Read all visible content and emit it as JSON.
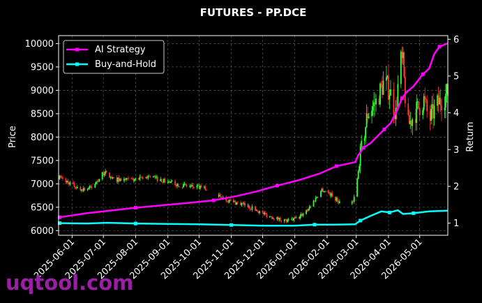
{
  "chart_data": {
    "type": "line",
    "title": "FUTURES - PP.DCE",
    "ylabel": "Price",
    "y2label": "Return",
    "x_ticks": [
      "2025-06-01",
      "2025-07-01",
      "2025-08-01",
      "2025-09-01",
      "2025-10-01",
      "2025-11-01",
      "2025-12-01",
      "2026-01-01",
      "2026-02-01",
      "2026-03-01",
      "2026-04-01",
      "2026-05-01"
    ],
    "x_range": [
      "2025-05-19",
      "2026-05-28"
    ],
    "y_ticks": [
      6000,
      6500,
      7000,
      7500,
      8000,
      8500,
      9000,
      9500,
      10000
    ],
    "ylim": [
      5900,
      10170
    ],
    "y2_ticks": [
      1,
      2,
      3,
      4,
      5,
      6
    ],
    "y2lim": [
      0.67,
      6.1
    ],
    "grid": true,
    "legend_position": "upper left",
    "candles": {
      "up_color": "#33ff33",
      "down_color": "#ff3333",
      "gaps": [
        [
          "2025-10-08",
          "2025-10-20"
        ],
        [
          "2026-02-13",
          "2026-02-25"
        ]
      ],
      "price_path": [
        [
          "2025-05-20",
          7130
        ],
        [
          "2025-05-31",
          7000
        ],
        [
          "2025-06-08",
          6880
        ],
        [
          "2025-06-20",
          6920
        ],
        [
          "2025-07-02",
          7250
        ],
        [
          "2025-07-10",
          7100
        ],
        [
          "2025-07-25",
          7080
        ],
        [
          "2025-08-05",
          7100
        ],
        [
          "2025-08-14",
          7170
        ],
        [
          "2025-08-25",
          7080
        ],
        [
          "2025-09-08",
          7000
        ],
        [
          "2025-09-20",
          6950
        ],
        [
          "2025-10-07",
          6900
        ],
        [
          "2025-10-21",
          6720
        ],
        [
          "2025-11-01",
          6620
        ],
        [
          "2025-11-12",
          6560
        ],
        [
          "2025-11-22",
          6470
        ],
        [
          "2025-12-05",
          6330
        ],
        [
          "2025-12-15",
          6260
        ],
        [
          "2025-12-25",
          6200
        ],
        [
          "2026-01-05",
          6280
        ],
        [
          "2026-01-15",
          6500
        ],
        [
          "2026-01-27",
          6880
        ],
        [
          "2026-02-02",
          6820
        ],
        [
          "2026-02-12",
          6620
        ],
        [
          "2026-02-26",
          6600
        ],
        [
          "2026-03-01",
          6920
        ],
        [
          "2026-03-05",
          7600
        ],
        [
          "2026-03-12",
          8500
        ],
        [
          "2026-03-20",
          8750
        ],
        [
          "2026-03-28",
          9200
        ],
        [
          "2026-04-02",
          9000
        ],
        [
          "2026-04-08",
          8500
        ],
        [
          "2026-04-12",
          9650
        ],
        [
          "2026-04-15",
          9550
        ],
        [
          "2026-04-19",
          8200
        ],
        [
          "2026-04-26",
          8500
        ],
        [
          "2026-05-05",
          8800
        ],
        [
          "2026-05-10",
          8350
        ],
        [
          "2026-05-18",
          8700
        ],
        [
          "2026-05-28",
          8950
        ]
      ]
    },
    "series": [
      {
        "name": "AI Strategy",
        "color": "#ff00ff",
        "axis": "right",
        "points": [
          [
            "2025-05-20",
            1.16
          ],
          [
            "2025-06-15",
            1.27
          ],
          [
            "2025-07-10",
            1.35
          ],
          [
            "2025-08-01",
            1.42
          ],
          [
            "2025-08-25",
            1.48
          ],
          [
            "2025-09-20",
            1.55
          ],
          [
            "2025-10-15",
            1.62
          ],
          [
            "2025-11-05",
            1.73
          ],
          [
            "2025-11-25",
            1.86
          ],
          [
            "2025-12-15",
            2.02
          ],
          [
            "2026-01-05",
            2.17
          ],
          [
            "2026-01-25",
            2.35
          ],
          [
            "2026-02-10",
            2.55
          ],
          [
            "2026-02-28",
            2.66
          ],
          [
            "2026-03-03",
            2.85
          ],
          [
            "2026-03-08",
            3.05
          ],
          [
            "2026-03-15",
            3.18
          ],
          [
            "2026-03-22",
            3.38
          ],
          [
            "2026-03-28",
            3.55
          ],
          [
            "2026-04-03",
            3.72
          ],
          [
            "2026-04-09",
            4.05
          ],
          [
            "2026-04-14",
            4.4
          ],
          [
            "2026-04-18",
            4.55
          ],
          [
            "2026-04-25",
            4.72
          ],
          [
            "2026-05-04",
            5.05
          ],
          [
            "2026-05-10",
            5.2
          ],
          [
            "2026-05-15",
            5.6
          ],
          [
            "2026-05-20",
            5.8
          ],
          [
            "2026-05-28",
            5.89
          ]
        ]
      },
      {
        "name": "Buy-and-Hold",
        "color": "#00ffff",
        "axis": "right",
        "points": [
          [
            "2025-05-20",
            1.0
          ],
          [
            "2025-06-15",
            0.99
          ],
          [
            "2025-07-05",
            1.01
          ],
          [
            "2025-08-01",
            0.99
          ],
          [
            "2025-09-01",
            0.98
          ],
          [
            "2025-10-01",
            0.97
          ],
          [
            "2025-11-01",
            0.95
          ],
          [
            "2025-12-01",
            0.93
          ],
          [
            "2026-01-01",
            0.93
          ],
          [
            "2026-01-20",
            0.96
          ],
          [
            "2026-02-10",
            0.96
          ],
          [
            "2026-02-28",
            0.97
          ],
          [
            "2026-03-05",
            1.07
          ],
          [
            "2026-03-15",
            1.2
          ],
          [
            "2026-03-25",
            1.32
          ],
          [
            "2026-04-02",
            1.29
          ],
          [
            "2026-04-10",
            1.35
          ],
          [
            "2026-04-15",
            1.25
          ],
          [
            "2026-04-25",
            1.27
          ],
          [
            "2026-05-10",
            1.32
          ],
          [
            "2026-05-28",
            1.34
          ]
        ]
      }
    ]
  },
  "watermark": "uqtool.com"
}
